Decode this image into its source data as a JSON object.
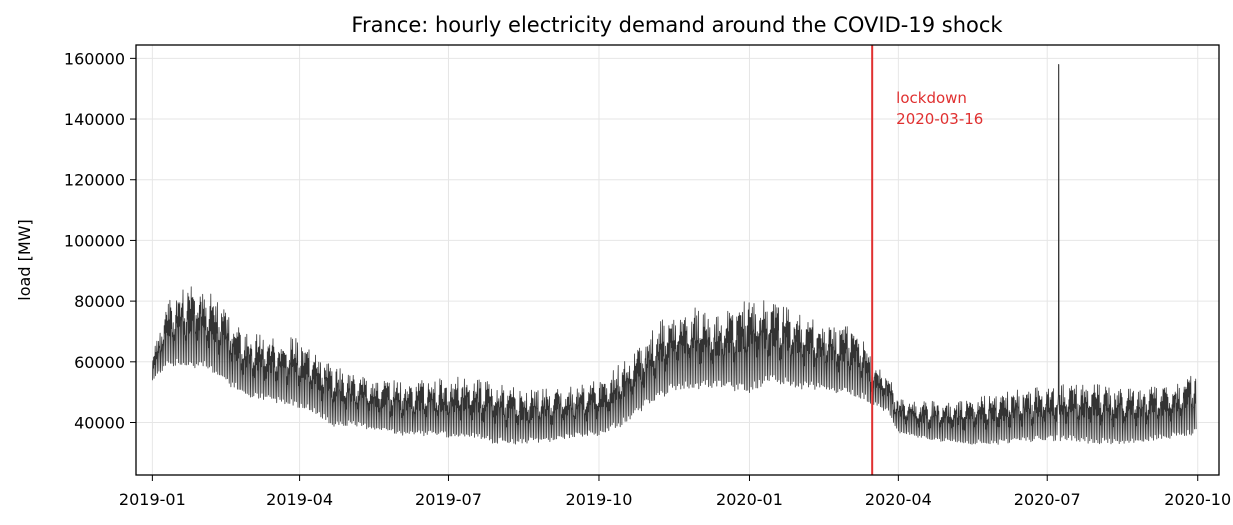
{
  "chart_data": {
    "type": "line",
    "title": "France: hourly electricity demand around the COVID-19 shock",
    "xlabel": "",
    "ylabel": "load [MW]",
    "x_type": "date",
    "x_range": [
      "2018-12-22",
      "2020-10-14"
    ],
    "ylim": [
      22700,
      164400
    ],
    "x_ticks": [
      "2019-01-01",
      "2019-04-01",
      "2019-07-01",
      "2019-10-01",
      "2020-01-01",
      "2020-04-01",
      "2020-07-01",
      "2020-10-01"
    ],
    "x_tick_labels": [
      "2019-01",
      "2019-04",
      "2019-07",
      "2019-10",
      "2020-01",
      "2020-04",
      "2020-07",
      "2020-10"
    ],
    "y_ticks": [
      40000,
      60000,
      80000,
      100000,
      120000,
      140000,
      160000
    ],
    "y_tick_labels": [
      "40000",
      "60000",
      "80000",
      "100000",
      "120000",
      "140000",
      "160000"
    ],
    "grid": true,
    "series": [
      {
        "color": "#333333",
        "resolution": "hourly",
        "daily_envelope": {
          "dates": [
            "2019-01-01",
            "2019-01-10",
            "2019-01-20",
            "2019-02-01",
            "2019-02-10",
            "2019-02-20",
            "2019-03-01",
            "2019-03-15",
            "2019-04-01",
            "2019-04-10",
            "2019-04-20",
            "2019-05-01",
            "2019-05-15",
            "2019-06-01",
            "2019-06-15",
            "2019-07-01",
            "2019-07-15",
            "2019-08-01",
            "2019-08-15",
            "2019-09-01",
            "2019-09-15",
            "2019-10-01",
            "2019-10-15",
            "2019-11-01",
            "2019-11-15",
            "2019-12-01",
            "2019-12-15",
            "2020-01-01",
            "2020-01-15",
            "2020-02-01",
            "2020-02-15",
            "2020-03-01",
            "2020-03-10",
            "2020-03-16",
            "2020-03-25",
            "2020-04-01",
            "2020-04-15",
            "2020-05-01",
            "2020-05-15",
            "2020-06-01",
            "2020-06-15",
            "2020-07-01",
            "2020-07-15",
            "2020-08-01",
            "2020-08-15",
            "2020-09-01",
            "2020-09-15",
            "2020-09-30"
          ],
          "min": [
            53000,
            58000,
            57000,
            57000,
            54000,
            50000,
            47000,
            46000,
            44000,
            42000,
            38000,
            38000,
            37000,
            35000,
            35000,
            34000,
            34000,
            32000,
            32000,
            33000,
            34000,
            35000,
            38000,
            45000,
            49000,
            50000,
            50000,
            48000,
            52000,
            50000,
            50000,
            48000,
            47000,
            45000,
            43000,
            36000,
            34000,
            33000,
            32000,
            32000,
            33000,
            33000,
            33000,
            32000,
            32000,
            33000,
            34000,
            35000
          ],
          "max": [
            62000,
            80000,
            84000,
            86000,
            80000,
            74000,
            70000,
            68000,
            68000,
            64000,
            60000,
            57000,
            55000,
            54000,
            54000,
            55000,
            55000,
            53000,
            51000,
            52000,
            52000,
            54000,
            60000,
            70000,
            77000,
            78000,
            76000,
            83000,
            80000,
            76000,
            73000,
            73000,
            70000,
            60000,
            57000,
            48000,
            47000,
            47000,
            48000,
            50000,
            51000,
            52000,
            53000,
            53000,
            52000,
            52000,
            53000,
            58000
          ]
        },
        "spike": {
          "date": "2020-07-08",
          "value": 158000
        }
      }
    ],
    "annotations": [
      {
        "type": "vline",
        "x": "2020-03-16",
        "color": "#e03030"
      },
      {
        "type": "text",
        "lines": [
          "lockdown",
          "2020-03-16"
        ],
        "x": "2020-03-16",
        "y": 148000,
        "color": "#e03030"
      }
    ]
  }
}
